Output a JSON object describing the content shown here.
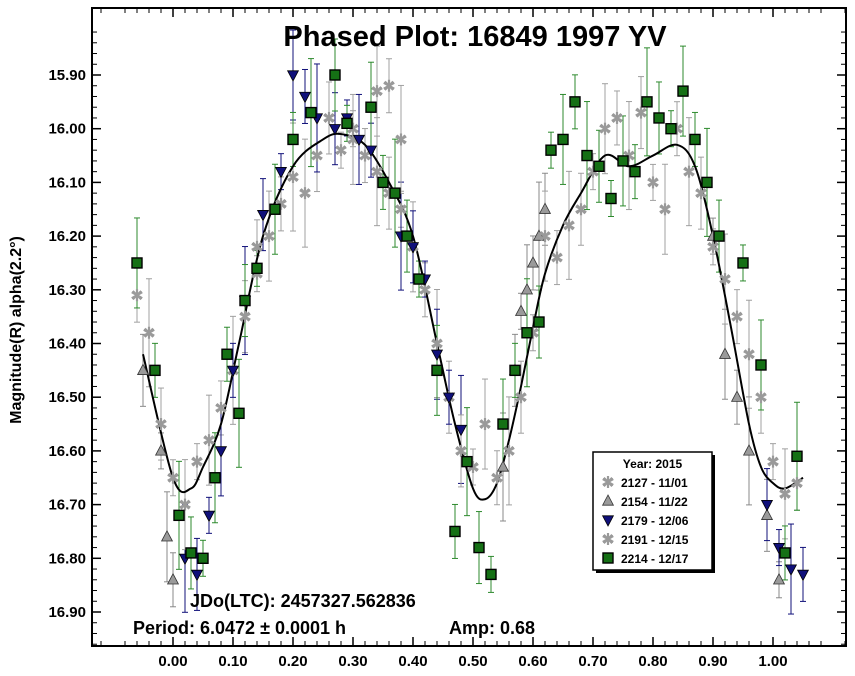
{
  "chart_data": {
    "type": "scatter",
    "title": "Phased Plot: 16849 1997 YV",
    "xlabel": "",
    "ylabel": "Magnitude(R) alpha(2.2°)",
    "xlim": [
      -0.13,
      1.13
    ],
    "ylim": [
      16.96,
      15.79
    ],
    "y_inverted": true,
    "grid": false,
    "legend_position": "lower-right",
    "legend_title": "Year: 2015",
    "x_ticks": [
      "0.00",
      "0.10",
      "0.20",
      "0.30",
      "0.40",
      "0.50",
      "0.60",
      "0.70",
      "0.80",
      "0.90",
      "1.00"
    ],
    "y_ticks": [
      "15.90",
      "16.00",
      "16.10",
      "16.20",
      "16.30",
      "16.40",
      "16.50",
      "16.60",
      "16.70",
      "16.80",
      "16.90"
    ],
    "annotations": [
      "JDo(LTC): 2457327.562836",
      "Period: 6.0472 ± 0.0001 h",
      "Amp: 0.68"
    ],
    "fit_curve": {
      "x": [
        -0.05,
        0.0,
        0.03,
        0.05,
        0.08,
        0.11,
        0.15,
        0.2,
        0.25,
        0.28,
        0.32,
        0.36,
        0.4,
        0.44,
        0.47,
        0.5,
        0.52,
        0.54,
        0.56,
        0.58,
        0.6,
        0.62,
        0.65,
        0.68,
        0.72,
        0.76,
        0.8,
        0.84,
        0.87,
        0.9,
        0.93,
        0.96,
        0.98,
        1.0,
        1.02,
        1.05
      ],
      "y": [
        16.42,
        16.65,
        16.67,
        16.63,
        16.55,
        16.4,
        16.2,
        16.07,
        16.02,
        16.01,
        16.03,
        16.1,
        16.2,
        16.4,
        16.55,
        16.67,
        16.69,
        16.66,
        16.58,
        16.48,
        16.37,
        16.27,
        16.18,
        16.12,
        16.05,
        16.07,
        16.05,
        16.03,
        16.07,
        16.2,
        16.37,
        16.55,
        16.63,
        16.66,
        16.67,
        16.65
      ]
    },
    "series": [
      {
        "name": "2127 - 11/01",
        "marker": "asterisk",
        "color": "#9a9a9a",
        "x": [
          0.04,
          0.06,
          0.08,
          0.1,
          0.12,
          0.14,
          0.16,
          0.18,
          0.2,
          0.24,
          0.28,
          0.3,
          0.32,
          0.34,
          0.36,
          0.38,
          0.4,
          0.42,
          0.44,
          0.46
        ],
        "y": [
          16.62,
          16.58,
          16.52,
          16.45,
          16.35,
          16.27,
          16.2,
          16.14,
          16.09,
          16.05,
          16.04,
          16.02,
          16.05,
          16.08,
          16.12,
          16.15,
          16.22,
          16.3,
          16.4,
          16.5
        ]
      },
      {
        "name": "2154 - 11/22",
        "marker": "triangle-up",
        "color": "#9a9a9a",
        "x": [
          -0.05,
          -0.02,
          -0.01,
          0.0,
          0.55,
          0.57,
          0.58,
          0.59,
          0.6,
          0.61,
          0.62,
          0.9,
          0.92,
          0.94,
          0.96,
          0.99,
          1.01
        ],
        "y": [
          16.45,
          16.6,
          16.76,
          16.84,
          16.63,
          16.45,
          16.34,
          16.3,
          16.25,
          16.2,
          16.15,
          16.2,
          16.42,
          16.5,
          16.6,
          16.72,
          16.84
        ]
      },
      {
        "name": "2179 - 12/06",
        "marker": "triangle-down",
        "color": "#10107a",
        "x": [
          0.02,
          0.04,
          0.06,
          0.08,
          0.1,
          0.12,
          0.15,
          0.18,
          0.2,
          0.22,
          0.24,
          0.27,
          0.29,
          0.31,
          0.33,
          0.38,
          0.4,
          0.42,
          0.44,
          0.46,
          0.48,
          0.99,
          1.01,
          1.03,
          1.05
        ],
        "y": [
          16.8,
          16.83,
          16.72,
          16.6,
          16.45,
          16.32,
          16.16,
          16.08,
          15.9,
          15.94,
          15.98,
          16.0,
          15.98,
          16.02,
          16.04,
          16.2,
          16.22,
          16.28,
          16.42,
          16.5,
          16.56,
          16.7,
          16.78,
          16.82,
          16.83
        ]
      },
      {
        "name": "2191 - 12/15",
        "marker": "asterisk",
        "color": "#9a9a9a",
        "x": [
          -0.06,
          -0.04,
          -0.02,
          0.0,
          0.02,
          0.14,
          0.22,
          0.26,
          0.3,
          0.34,
          0.36,
          0.38,
          0.48,
          0.5,
          0.52,
          0.54,
          0.56,
          0.58,
          0.6,
          0.62,
          0.64,
          0.66,
          0.68,
          0.7,
          0.72,
          0.74,
          0.76,
          0.78,
          0.8,
          0.82,
          0.84,
          0.86,
          0.88,
          0.9,
          0.92,
          0.94,
          0.96,
          0.98,
          1.0,
          1.02,
          1.04
        ],
        "y": [
          16.31,
          16.38,
          16.55,
          16.65,
          16.7,
          16.22,
          16.12,
          15.98,
          16.0,
          15.93,
          15.92,
          16.02,
          16.6,
          16.63,
          16.55,
          16.65,
          16.6,
          16.5,
          16.38,
          16.2,
          16.24,
          16.18,
          16.15,
          16.08,
          16.0,
          15.98,
          16.05,
          15.97,
          16.1,
          16.15,
          16.0,
          16.08,
          16.12,
          16.22,
          16.28,
          16.35,
          16.42,
          16.5,
          16.62,
          16.68,
          16.66
        ]
      },
      {
        "name": "2214 - 12/17",
        "marker": "square",
        "color": "#157015",
        "x": [
          -0.06,
          -0.03,
          0.01,
          0.03,
          0.05,
          0.07,
          0.09,
          0.11,
          0.12,
          0.14,
          0.17,
          0.2,
          0.23,
          0.27,
          0.29,
          0.33,
          0.35,
          0.37,
          0.39,
          0.41,
          0.44,
          0.47,
          0.49,
          0.51,
          0.53,
          0.55,
          0.57,
          0.59,
          0.61,
          0.63,
          0.65,
          0.67,
          0.69,
          0.71,
          0.73,
          0.75,
          0.77,
          0.79,
          0.81,
          0.83,
          0.85,
          0.87,
          0.89,
          0.91,
          0.95,
          0.98,
          1.02,
          1.04
        ],
        "y": [
          16.25,
          16.45,
          16.72,
          16.79,
          16.8,
          16.65,
          16.42,
          16.53,
          16.32,
          16.26,
          16.15,
          16.02,
          15.97,
          15.9,
          15.99,
          15.96,
          16.1,
          16.12,
          16.2,
          16.28,
          16.45,
          16.75,
          16.62,
          16.78,
          16.83,
          16.55,
          16.45,
          16.38,
          16.36,
          16.04,
          16.02,
          15.95,
          16.05,
          16.07,
          16.13,
          16.06,
          16.08,
          15.95,
          15.98,
          16.0,
          15.93,
          16.02,
          16.1,
          16.2,
          16.25,
          16.44,
          16.79,
          16.61
        ]
      }
    ]
  }
}
